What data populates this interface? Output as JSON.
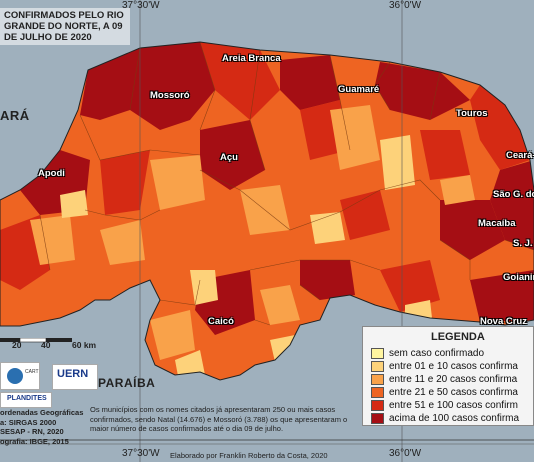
{
  "title": "CONFIRMADOS PELO RIO GRANDE DO NORTE, A 09 DE JULHO DE 2020",
  "coords": {
    "lon_left": "37°30'W",
    "lon_right": "36°0'W"
  },
  "states": {
    "ceara": "ARÁ",
    "paraiba": "PARAÍBA"
  },
  "cities": [
    "Areia Branca",
    "Mossoró",
    "Guamaré",
    "Touros",
    "Açu",
    "Apodi",
    "Ceará-",
    "São G. do",
    "Macaíba",
    "S. J.",
    "Goianin",
    "Nova Cruz",
    "Caicó"
  ],
  "legend": {
    "title": "LEGENDA",
    "items": [
      {
        "label": "sem caso confirmado",
        "color": "#fff5a0"
      },
      {
        "label": "entre 01 e 10 casos confirma",
        "color": "#fdd27a"
      },
      {
        "label": "entre 11 e 20 casos confirma",
        "color": "#f9a24a"
      },
      {
        "label": "entre 21 e 50 casos confirma",
        "color": "#ee6422"
      },
      {
        "label": "entre 51 e 100 casos confirm",
        "color": "#d52a14"
      },
      {
        "label": "acima de 100 casos confirma",
        "color": "#a50e14"
      }
    ]
  },
  "scale": {
    "ticks": [
      "20",
      "40",
      "60 km"
    ]
  },
  "logos": {
    "uern": "UERN",
    "plandites": "PLANDITES"
  },
  "notes": [
    "ordenadas Geográficas",
    "a: SIRGAS 2000",
    "SESAP - RN, 2020",
    "ografia: IBGE, 2015"
  ],
  "footer_text": "Os municípios com os nomes citados já apresentaram 250 ou mais casos confirmados, sendo Natal (14.676) e Mossoró (3.788) os que apresentaram o maior número de casos confirmados até o dia 09 de julho.",
  "credit": "Elaborado por Franklin Roberto da Costa, 2020"
}
